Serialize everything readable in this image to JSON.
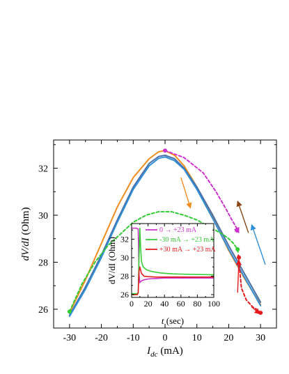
{
  "chart_data": [
    {
      "type": "line",
      "title": "",
      "xlabel": "I_dc (mA)",
      "xlabel_parts": {
        "main": "I",
        "sub": "dc",
        "unit": " (mA)"
      },
      "ylabel": "dV/dI (Ohm)",
      "ylabel_parts": {
        "var": "dV/dI",
        "unit": " (Ohm)"
      },
      "xlim": [
        -35,
        35
      ],
      "ylim": [
        25.2,
        33.2
      ],
      "xticks": [
        -30,
        -20,
        -10,
        0,
        10,
        20,
        30
      ],
      "yticks": [
        26,
        28,
        30,
        32
      ],
      "grid": false,
      "series": [
        {
          "color": "#f28c1e",
          "style": "solid",
          "x": [
            -30,
            -25,
            -20,
            -15,
            -10,
            -5,
            -2,
            0,
            3,
            6,
            10,
            15,
            20,
            25,
            30
          ],
          "y": [
            25.85,
            27.25,
            28.8,
            30.35,
            31.6,
            32.4,
            32.7,
            32.75,
            32.55,
            32.1,
            31.2,
            29.9,
            28.5,
            27.3,
            26.2
          ]
        },
        {
          "color": "#4a6fa5",
          "style": "solid",
          "x": [
            -30,
            -25,
            -20,
            -15,
            -10,
            -5,
            -2,
            0,
            3,
            6,
            10,
            15,
            20,
            25,
            30
          ],
          "y": [
            25.75,
            26.95,
            28.3,
            29.8,
            31.2,
            32.2,
            32.5,
            32.55,
            32.4,
            32.0,
            31.2,
            30.0,
            28.7,
            27.5,
            26.3
          ]
        },
        {
          "color": "#2f8fd8",
          "style": "solid",
          "x": [
            -30,
            -25,
            -20,
            -15,
            -10,
            -5,
            -2,
            0,
            3,
            6,
            10,
            15,
            20,
            25,
            30
          ],
          "y": [
            25.7,
            26.85,
            28.2,
            29.7,
            31.1,
            32.1,
            32.42,
            32.48,
            32.32,
            31.95,
            31.1,
            29.85,
            28.55,
            27.35,
            26.15
          ]
        },
        {
          "color": "#cc33cc",
          "style": "dashed",
          "x": [
            0,
            6,
            12,
            16,
            19,
            21,
            22.3,
            23
          ],
          "y": [
            32.75,
            32.45,
            31.8,
            31.0,
            30.3,
            29.8,
            29.5,
            29.3
          ]
        },
        {
          "color": "#33cc33",
          "style": "dashed",
          "x": [
            -30,
            -26,
            -22,
            -18,
            -14,
            -10,
            -6,
            -2,
            2,
            6,
            10,
            14,
            18,
            20,
            21.5,
            22.5,
            23
          ],
          "y": [
            25.9,
            27.1,
            28.0,
            28.7,
            29.2,
            29.7,
            30.0,
            30.15,
            30.15,
            30.0,
            29.8,
            29.5,
            29.2,
            29.0,
            28.8,
            28.6,
            28.4
          ]
        },
        {
          "color": "#e41a1c",
          "style": "dashed",
          "x": [
            23,
            24,
            25.5,
            27.5,
            29.3,
            30
          ],
          "y": [
            28.3,
            26.9,
            26.4,
            26.1,
            25.95,
            25.85
          ]
        }
      ],
      "markers": [
        {
          "x": 0,
          "y": 32.75,
          "color": "#cc33cc"
        },
        {
          "x": 22.6,
          "y": 29.35,
          "color": "#cc33cc"
        },
        {
          "x": -30,
          "y": 25.9,
          "color": "#33cc33"
        },
        {
          "x": 22.8,
          "y": 28.55,
          "color": "#33cc33"
        },
        {
          "x": 30,
          "y": 25.85,
          "color": "#e41a1c"
        },
        {
          "x": 23.2,
          "y": 28.2,
          "color": "#e41a1c"
        }
      ],
      "arrows": [
        {
          "color": "#f28c1e",
          "from": [
            5,
            31.6
          ],
          "to": [
            8,
            30.3
          ]
        },
        {
          "color": "#2f8fd8",
          "from": [
            31.5,
            27.9
          ],
          "to": [
            27.2,
            29.6
          ]
        },
        {
          "color": "#8b4513",
          "from": [
            26.2,
            29.25
          ],
          "to": [
            22.8,
            30.6
          ]
        },
        {
          "color": "#e41a1c",
          "from": [
            22.8,
            26.7
          ],
          "to": [
            23.2,
            28.1
          ]
        },
        {
          "color": "#e41a1c",
          "from": [
            27.2,
            26.1
          ],
          "to": [
            29.8,
            25.8
          ]
        },
        {
          "color": "#cc33cc",
          "from": [
            22.3,
            29.5
          ],
          "to": [
            23.2,
            29.25
          ]
        }
      ]
    },
    {
      "type": "line",
      "title": "",
      "xlabel": "t (sec)",
      "xlabel_parts": {
        "var": "t",
        "unit": " (sec)"
      },
      "ylabel": "dV/dI (Ohm)",
      "xlim": [
        0,
        100
      ],
      "ylim": [
        25.7,
        33.7
      ],
      "xticks": [
        0,
        20,
        40,
        60,
        80,
        100
      ],
      "yticks": [
        26,
        28,
        30,
        32
      ],
      "grid": false,
      "legend": "top-right",
      "series": [
        {
          "name": "0 → +23 mA",
          "color": "#cc33cc",
          "x": [
            0,
            6,
            8,
            9,
            10,
            12,
            15,
            20,
            30,
            40,
            60,
            80,
            100
          ],
          "y": [
            33.2,
            33.2,
            33.1,
            28.2,
            27.3,
            27.5,
            27.6,
            27.7,
            27.75,
            27.8,
            27.8,
            27.8,
            27.8
          ]
        },
        {
          "name": "-30 mA → +23 mA",
          "color": "#33cc33",
          "x": [
            0,
            7,
            8,
            9,
            10,
            11,
            12,
            14,
            18,
            25,
            35,
            50,
            70,
            100
          ],
          "y": [
            26.1,
            26.1,
            26.2,
            30.0,
            33.2,
            31.0,
            29.6,
            29.0,
            28.7,
            28.5,
            28.35,
            28.25,
            28.2,
            28.15
          ]
        },
        {
          "name": "+30 mA → +23 mA",
          "color": "#e41a1c",
          "x": [
            0,
            7,
            8,
            9,
            10,
            12,
            15,
            20,
            30,
            50,
            70,
            100
          ],
          "y": [
            26.0,
            26.0,
            26.2,
            28.5,
            29.0,
            28.3,
            28.0,
            27.95,
            27.9,
            27.9,
            27.9,
            27.9
          ]
        }
      ]
    }
  ]
}
